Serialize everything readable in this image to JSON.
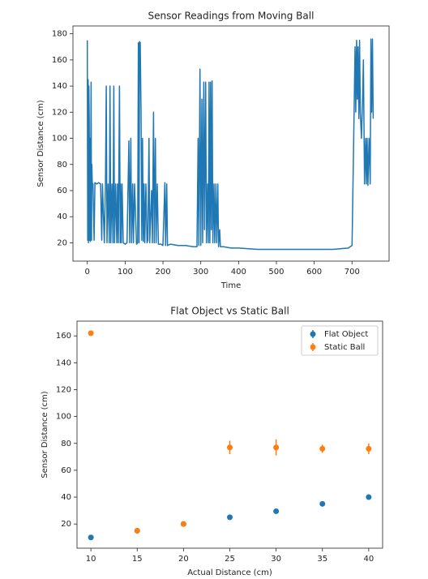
{
  "chart_data": [
    {
      "type": "line",
      "title": "Sensor Readings from Moving Ball",
      "x_label": "Time",
      "y_label": "Sensor Distance (cm)",
      "color": "#1f77b4",
      "x": [
        0,
        1,
        2,
        3,
        4,
        5,
        6,
        7,
        8,
        10,
        11,
        12,
        13,
        15,
        18,
        20,
        25,
        30,
        35,
        38,
        40,
        45,
        48,
        50,
        52,
        55,
        58,
        60,
        62,
        65,
        68,
        70,
        72,
        75,
        78,
        80,
        82,
        85,
        87,
        88,
        90,
        92,
        95,
        100,
        105,
        110,
        112,
        115,
        117,
        120,
        122,
        125,
        130,
        133,
        135,
        137,
        138,
        140,
        142,
        144,
        146,
        148,
        150,
        152,
        155,
        158,
        160,
        163,
        165,
        170,
        172,
        175,
        177,
        180,
        182,
        185,
        188,
        195,
        200,
        205,
        207,
        210,
        212,
        220,
        240,
        260,
        280,
        290,
        293,
        295,
        298,
        300,
        303,
        305,
        308,
        310,
        313,
        315,
        318,
        320,
        322,
        324,
        326,
        328,
        330,
        332,
        335,
        337,
        340,
        342,
        345,
        347,
        350,
        352,
        360,
        380,
        400,
        450,
        500,
        550,
        600,
        650,
        690,
        700,
        705,
        708,
        710,
        712,
        714,
        716,
        718,
        720,
        722,
        725,
        728,
        730,
        733,
        736,
        738,
        740,
        742,
        745,
        748,
        750,
        752,
        754,
        756
      ],
      "values": [
        175,
        22,
        145,
        20,
        140,
        115,
        22,
        100,
        21,
        143,
        22,
        80,
        66,
        65,
        22,
        66,
        65,
        66,
        65,
        22,
        65,
        20,
        65,
        140,
        20,
        65,
        20,
        140,
        20,
        65,
        20,
        140,
        20,
        65,
        20,
        65,
        20,
        140,
        20,
        65,
        20,
        65,
        20,
        19,
        20,
        98,
        20,
        100,
        20,
        65,
        20,
        65,
        19,
        20,
        173,
        20,
        174,
        173,
        120,
        22,
        100,
        21,
        65,
        20,
        65,
        20,
        22,
        100,
        20,
        60,
        20,
        120,
        20,
        100,
        20,
        65,
        19,
        19,
        18,
        66,
        18,
        65,
        18,
        19,
        18,
        18,
        17,
        17,
        100,
        18,
        153,
        18,
        130,
        20,
        143,
        30,
        143,
        20,
        65,
        20,
        143,
        20,
        143,
        30,
        144,
        20,
        65,
        20,
        65,
        20,
        65,
        17,
        30,
        17,
        17,
        16,
        16,
        15,
        15,
        15,
        15,
        15,
        16,
        18,
        110,
        170,
        120,
        175,
        130,
        170,
        115,
        175,
        120,
        100,
        130,
        160,
        65,
        100,
        65,
        100,
        64,
        100,
        65,
        176,
        120,
        176,
        115
      ],
      "xlim": [
        -38,
        798
      ],
      "ylim": [
        6,
        186
      ],
      "xticks": [
        0,
        100,
        200,
        300,
        400,
        500,
        600,
        700
      ],
      "yticks": [
        20,
        40,
        60,
        80,
        100,
        120,
        140,
        160,
        180
      ]
    },
    {
      "type": "errorbar",
      "title": "Flat Object vs Static Ball",
      "x_label": "Actual Distance (cm)",
      "y_label": "Sensor Distance (cm)",
      "legend": "upper right",
      "x": [
        10,
        15,
        20,
        25,
        30,
        35,
        40
      ],
      "series": [
        {
          "name": "Flat Object",
          "color": "#1f77b4",
          "values": [
            10,
            15,
            20,
            25,
            29.5,
            35,
            40
          ],
          "errors": [
            0.5,
            0.5,
            0.5,
            0.5,
            0.5,
            0.5,
            0.5
          ]
        },
        {
          "name": "Static Ball",
          "color": "#ff7f0e",
          "values": [
            162,
            15,
            20,
            77,
            77,
            76,
            76
          ],
          "errors": [
            1,
            1,
            1.5,
            5,
            6,
            3,
            4
          ]
        }
      ],
      "xlim": [
        8.5,
        41.5
      ],
      "ylim": [
        2,
        171
      ],
      "xticks": [
        10,
        15,
        20,
        25,
        30,
        35,
        40
      ],
      "yticks": [
        20,
        40,
        60,
        80,
        100,
        120,
        140,
        160
      ]
    }
  ]
}
